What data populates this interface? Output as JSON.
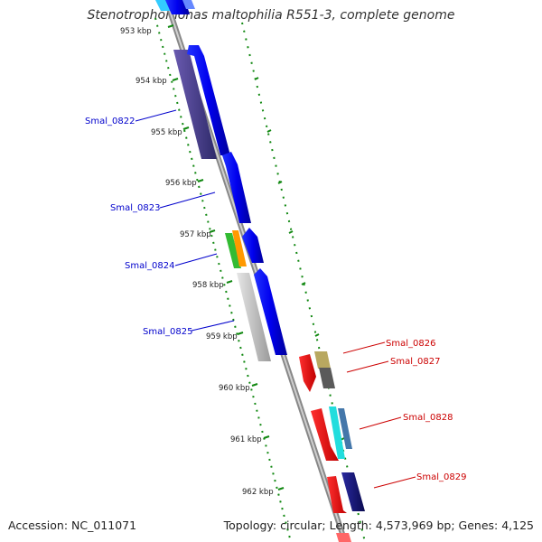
{
  "title": "Stenotrophomonas maltophilia R551-3, complete genome",
  "accession": "Accession: NC_011071",
  "summary": "Topology: circular; Length: 4,573,969 bp; Genes: 4,125",
  "tick_labels": [
    "953 kbp",
    "954 kbp",
    "955 kbp",
    "956 kbp",
    "957 kbp",
    "958 kbp",
    "959 kbp",
    "960 kbp",
    "961 kbp",
    "962 kbp"
  ],
  "gene_labels_left": [
    "Smal_0822",
    "Smal_0823",
    "Smal_0824",
    "Smal_0825"
  ],
  "gene_labels_right": [
    "Smal_0826",
    "Smal_0827",
    "Smal_0828",
    "Smal_0829"
  ],
  "colors": {
    "backbone": "#8a8a8a",
    "ruler": "#118811",
    "left_label": "#0000cc",
    "right_label": "#cc0000",
    "forward_gene": "#0000ee",
    "reverse_gene": "#ff0000"
  }
}
